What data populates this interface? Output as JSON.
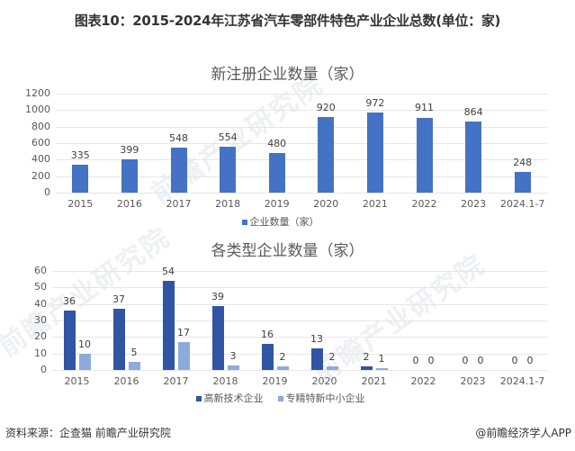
{
  "figure": {
    "title": "图表10：2015-2024年江苏省汽车零部件特色产业企业总数(单位：家)"
  },
  "watermark": "前瞻产业研究院",
  "footer": {
    "source": "资料来源：企查猫 前瞻产业研究院",
    "credit": "@前瞻经济学人APP"
  },
  "chart_data": [
    {
      "type": "bar",
      "title": "新注册企业数量（家）",
      "categories": [
        "2015",
        "2016",
        "2017",
        "2018",
        "2019",
        "2020",
        "2021",
        "2022",
        "2023",
        "2024.1-7"
      ],
      "series": [
        {
          "name": "企业数量（家）",
          "color": "#4472c4",
          "values": [
            335,
            399,
            548,
            554,
            480,
            920,
            972,
            911,
            864,
            248
          ]
        }
      ],
      "yticks": [
        "0",
        "200",
        "400",
        "600",
        "800",
        "1000",
        "1200"
      ],
      "ylim": [
        0,
        1200
      ],
      "grid": true,
      "legend_position": "bottom",
      "xlabel": "",
      "ylabel": ""
    },
    {
      "type": "bar",
      "title": "各类型企业数量（家）",
      "categories": [
        "2015",
        "2016",
        "2017",
        "2018",
        "2019",
        "2020",
        "2021",
        "2022",
        "2023",
        "2024.1-7"
      ],
      "series": [
        {
          "name": "高新技术企业",
          "color": "#2f55a4",
          "values": [
            36,
            37,
            54,
            39,
            16,
            13,
            2,
            0,
            0,
            0
          ]
        },
        {
          "name": "专精特新中小企业",
          "color": "#8faadc",
          "values": [
            10,
            5,
            17,
            3,
            2,
            2,
            1,
            0,
            0,
            0
          ]
        }
      ],
      "yticks": [
        "0",
        "10",
        "20",
        "30",
        "40",
        "50",
        "60"
      ],
      "ylim": [
        0,
        60
      ],
      "grid": true,
      "legend_position": "bottom",
      "xlabel": "",
      "ylabel": ""
    }
  ]
}
